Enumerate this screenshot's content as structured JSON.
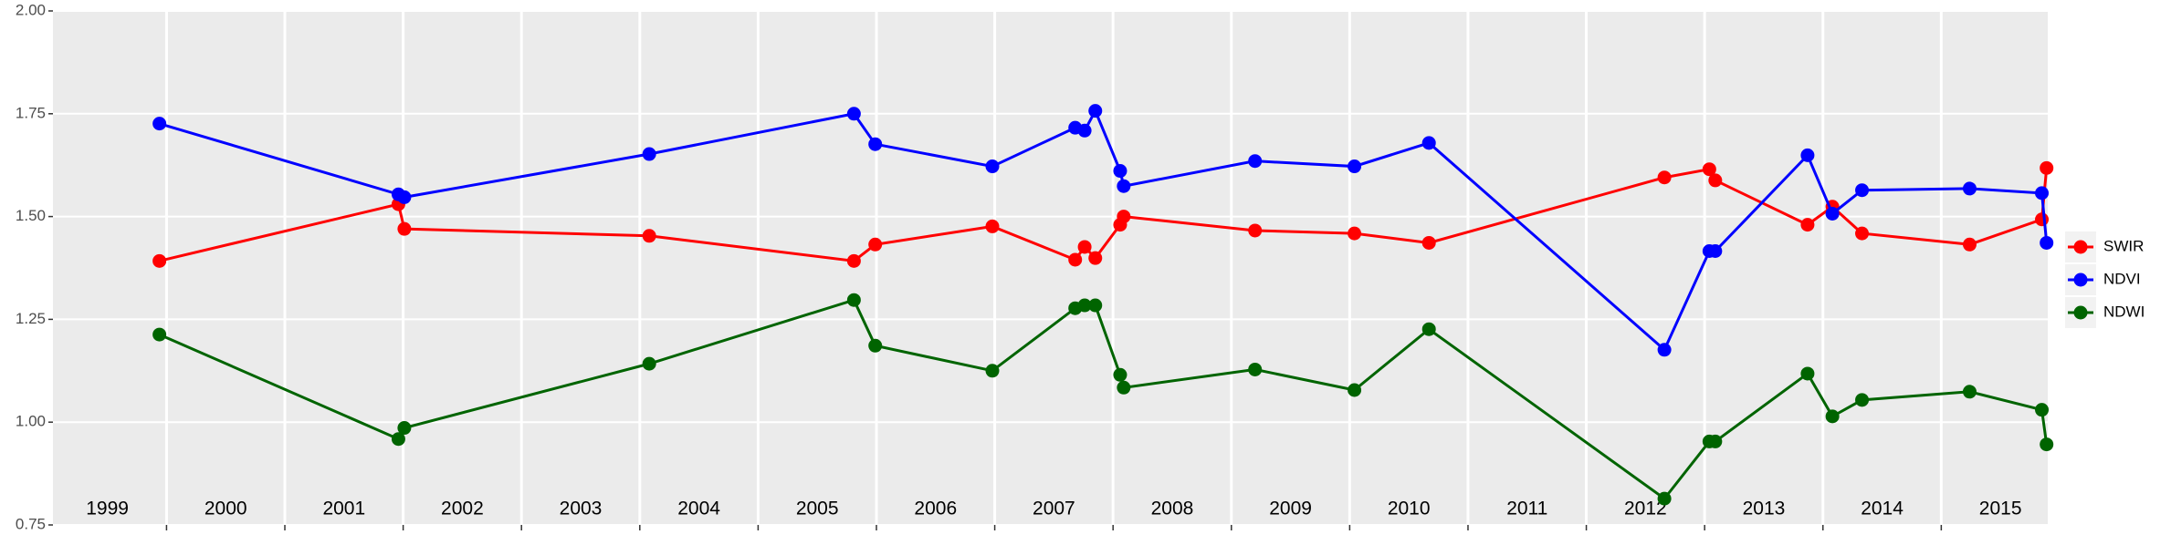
{
  "chart_data": {
    "type": "line",
    "x": [
      1999.94,
      2001.96,
      2002.01,
      2004.08,
      2005.81,
      2005.99,
      2006.98,
      2007.68,
      2007.76,
      2007.85,
      2008.06,
      2008.09,
      2009.2,
      2010.04,
      2010.67,
      2012.66,
      2013.04,
      2013.09,
      2013.87,
      2014.08,
      2014.33,
      2015.24,
      2015.85,
      2015.89
    ],
    "series": [
      {
        "name": "SWIR",
        "color": "#ff0000",
        "values": [
          1.392,
          1.53,
          1.47,
          1.453,
          1.392,
          1.432,
          1.476,
          1.395,
          1.426,
          1.399,
          1.48,
          1.5,
          1.466,
          1.459,
          1.436,
          1.595,
          1.615,
          1.588,
          1.48,
          1.524,
          1.459,
          1.432,
          1.493,
          1.618
        ]
      },
      {
        "name": "NDVI",
        "color": "#0000ff",
        "values": [
          1.726,
          1.554,
          1.547,
          1.652,
          1.75,
          1.676,
          1.622,
          1.716,
          1.709,
          1.757,
          1.611,
          1.574,
          1.635,
          1.622,
          1.679,
          1.176,
          1.416,
          1.416,
          1.649,
          1.507,
          1.564,
          1.568,
          1.557,
          1.436
        ]
      },
      {
        "name": "NDWI",
        "color": "#006400",
        "values": [
          1.213,
          0.959,
          0.986,
          1.142,
          1.297,
          1.186,
          1.125,
          1.277,
          1.284,
          1.284,
          1.115,
          1.084,
          1.128,
          1.078,
          1.226,
          0.814,
          0.953,
          0.953,
          1.118,
          1.014,
          1.054,
          1.074,
          1.03,
          0.946
        ]
      }
    ],
    "xlim": [
      1999.04,
      2015.9
    ],
    "xticks": [
      {
        "value": 1999.5,
        "label": "1999"
      },
      {
        "value": 2000.5,
        "label": "2000"
      },
      {
        "value": 2001.5,
        "label": "2001"
      },
      {
        "value": 2002.5,
        "label": "2002"
      },
      {
        "value": 2003.5,
        "label": "2003"
      },
      {
        "value": 2004.5,
        "label": "2004"
      },
      {
        "value": 2005.5,
        "label": "2005"
      },
      {
        "value": 2006.5,
        "label": "2006"
      },
      {
        "value": 2007.5,
        "label": "2007"
      },
      {
        "value": 2008.5,
        "label": "2008"
      },
      {
        "value": 2009.5,
        "label": "2009"
      },
      {
        "value": 2010.5,
        "label": "2010"
      },
      {
        "value": 2011.5,
        "label": "2011"
      },
      {
        "value": 2012.5,
        "label": "2012"
      },
      {
        "value": 2013.5,
        "label": "2013"
      },
      {
        "value": 2014.5,
        "label": "2014"
      },
      {
        "value": 2015.5,
        "label": "2015"
      }
    ],
    "ylim": [
      0.75,
      2.0
    ],
    "yticks": [
      {
        "value": 0.75,
        "label": "0.75"
      },
      {
        "value": 1.0,
        "label": "1.00"
      },
      {
        "value": 1.25,
        "label": "1.25"
      },
      {
        "value": 1.5,
        "label": "1.50"
      },
      {
        "value": 1.75,
        "label": "1.75"
      },
      {
        "value": 2.0,
        "label": "2.00"
      }
    ],
    "grid": true,
    "legend_position": "right"
  }
}
